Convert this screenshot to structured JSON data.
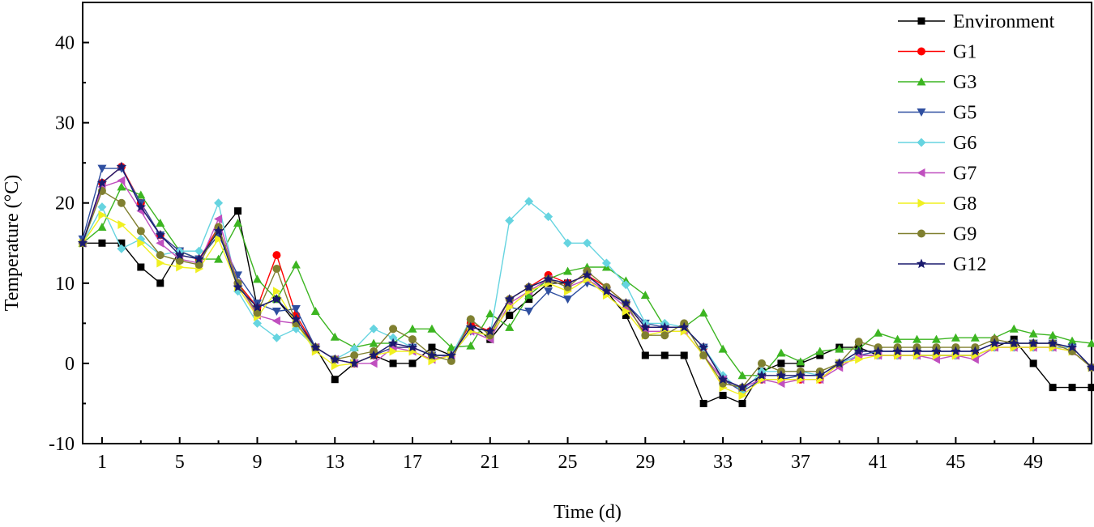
{
  "chart_data": {
    "type": "line",
    "title": "",
    "xlabel": "Time (d)",
    "ylabel": "Temperature (°C)",
    "xlim": [
      0,
      52
    ],
    "ylim": [
      -10,
      45
    ],
    "x_ticks": [
      1,
      5,
      9,
      13,
      17,
      21,
      25,
      29,
      33,
      37,
      41,
      45,
      49
    ],
    "y_ticks": [
      -10,
      0,
      10,
      20,
      30,
      40
    ],
    "legend_position": "top-right",
    "grid": false,
    "x": [
      0,
      1,
      2,
      3,
      4,
      5,
      6,
      7,
      8,
      9,
      10,
      11,
      12,
      13,
      14,
      15,
      16,
      17,
      18,
      19,
      20,
      21,
      22,
      23,
      24,
      25,
      26,
      27,
      28,
      29,
      30,
      31,
      32,
      33,
      34,
      35,
      36,
      37,
      38,
      39,
      40,
      41,
      42,
      43,
      44,
      45,
      46,
      47,
      48,
      49,
      50,
      51,
      52
    ],
    "series": [
      {
        "name": "Environment",
        "color": "#000000",
        "marker": "square",
        "values": [
          15,
          15,
          15,
          12,
          10,
          14,
          13,
          16,
          19,
          7,
          8,
          5,
          2,
          -2,
          0,
          1,
          0,
          0,
          2,
          1,
          5,
          3,
          6,
          8,
          10,
          10,
          11,
          9,
          6,
          1,
          1,
          1,
          -5,
          -4,
          -5,
          -1,
          0,
          0,
          1,
          2,
          2,
          1,
          1,
          1,
          1,
          1,
          1,
          2,
          3,
          0,
          -3,
          -3,
          -3
        ]
      },
      {
        "name": "G1",
        "color": "#ff0000",
        "marker": "circle",
        "values": [
          15,
          22.5,
          24.5,
          20,
          16,
          14,
          13,
          17,
          10,
          7,
          13.5,
          6,
          2,
          0.5,
          0,
          1,
          2,
          2,
          1,
          1,
          5,
          4,
          8,
          9.5,
          11,
          10,
          11,
          9.5,
          7.5,
          4.5,
          4.5,
          4.5,
          2,
          -2,
          -3.5,
          -2,
          -2,
          -2,
          -2,
          0,
          1,
          1,
          1,
          1,
          1,
          1,
          1,
          2,
          2,
          2,
          2,
          2,
          -0.5
        ]
      },
      {
        "name": "G3",
        "color": "#3cb521",
        "marker": "triangle-up",
        "values": [
          15,
          17,
          22,
          21,
          17.5,
          14,
          13,
          13,
          17.5,
          10.5,
          8,
          12.3,
          6.5,
          3.3,
          2,
          2.5,
          2.5,
          4.3,
          4.3,
          2,
          2.2,
          6.2,
          4.5,
          8.5,
          10.5,
          11.5,
          12,
          12,
          10.3,
          8.5,
          4.5,
          4.5,
          6.3,
          1.8,
          -1.5,
          -1.5,
          1.3,
          0.2,
          1.5,
          1.8,
          1.8,
          3.8,
          3,
          3,
          3,
          3.2,
          3.2,
          3.2,
          4.3,
          3.7,
          3.5,
          2.8,
          2.5
        ]
      },
      {
        "name": "G5",
        "color": "#2f4fa0",
        "marker": "triangle-down",
        "values": [
          15.5,
          24.3,
          24.3,
          20,
          16,
          14,
          13,
          16,
          11,
          7.5,
          6.5,
          6.8,
          2,
          0.5,
          0,
          1,
          2,
          2,
          1,
          1,
          4,
          3.5,
          7,
          6.5,
          9,
          8,
          10,
          9,
          7.5,
          5,
          4.5,
          4.5,
          2,
          -2,
          -3.5,
          -2,
          -2,
          -1.5,
          -1.5,
          0,
          1,
          1.5,
          1.5,
          1.5,
          1.5,
          1.5,
          1.5,
          2.5,
          2.5,
          2.5,
          2.5,
          2,
          -0.5
        ]
      },
      {
        "name": "G6",
        "color": "#66d4e0",
        "marker": "diamond",
        "values": [
          15,
          19.5,
          14.3,
          15.5,
          13.5,
          14,
          14,
          20,
          9,
          5,
          3.2,
          4.3,
          2,
          0.5,
          1.8,
          4.3,
          3.2,
          2,
          1,
          1,
          5.5,
          3.5,
          17.8,
          20.2,
          18.3,
          15,
          15,
          12.5,
          9.8,
          5,
          5,
          4.5,
          2,
          -1.5,
          -3.5,
          -1,
          -1,
          -1,
          -1.5,
          0,
          1,
          1,
          1,
          1,
          1,
          1,
          1,
          2,
          2,
          2,
          2,
          2,
          -0.5
        ]
      },
      {
        "name": "G7",
        "color": "#c04fbf",
        "marker": "triangle-left",
        "values": [
          15,
          22,
          22.8,
          19,
          15,
          13,
          12.5,
          18,
          10,
          6,
          5.3,
          5,
          2,
          0.5,
          0,
          0,
          2,
          1.5,
          0.5,
          1,
          4,
          3,
          7.5,
          9,
          10.5,
          9.5,
          10.5,
          9,
          7,
          4,
          4,
          4,
          1,
          -2,
          -3,
          -2,
          -2.5,
          -2,
          -2,
          -0.5,
          1,
          1,
          1,
          1,
          0.5,
          1,
          0.5,
          2,
          2,
          2,
          2,
          1.5,
          -0.5
        ]
      },
      {
        "name": "G8",
        "color": "#f0f020",
        "marker": "triangle-right",
        "values": [
          15,
          18.5,
          17.3,
          15,
          12.5,
          12,
          11.8,
          15.5,
          9.5,
          5.8,
          9,
          5,
          1.5,
          -0.3,
          0,
          1,
          1.5,
          1.5,
          0.3,
          1,
          4,
          3.5,
          7,
          9,
          10,
          9,
          10.5,
          8.5,
          6.5,
          3.5,
          4,
          4,
          1,
          -3,
          -4,
          -2,
          -2,
          -2,
          -2,
          0,
          0.5,
          1,
          1,
          1,
          1,
          1,
          1,
          2,
          2,
          2,
          2,
          1.5,
          -0.5
        ]
      },
      {
        "name": "G9",
        "color": "#808030",
        "marker": "circle",
        "values": [
          15,
          21.5,
          20,
          16.5,
          13.5,
          12.8,
          12.3,
          17,
          10,
          6.3,
          11.8,
          5,
          2,
          0.5,
          1,
          1.5,
          4.3,
          3,
          1,
          0.3,
          5.5,
          3.5,
          8,
          9.5,
          10.5,
          9.5,
          11.5,
          9.5,
          7.5,
          3.5,
          3.5,
          5,
          1,
          -2.5,
          -3,
          0,
          -1,
          -1,
          -1,
          0,
          2.7,
          2,
          2,
          2,
          2,
          2,
          2,
          3,
          2.5,
          2.5,
          2.5,
          1.5,
          -0.5
        ]
      },
      {
        "name": "G12",
        "color": "#1a1a6e",
        "marker": "star",
        "values": [
          15,
          22.5,
          24.5,
          19.5,
          16,
          13.5,
          13,
          16.5,
          9.5,
          7,
          8,
          5.5,
          2,
          0.5,
          0,
          1,
          2.5,
          2,
          1,
          1,
          4.5,
          4,
          8,
          9.5,
          10.5,
          10,
          11,
          9,
          7.5,
          4.5,
          4.5,
          4.5,
          2,
          -2,
          -3,
          -1.5,
          -1.5,
          -1.5,
          -1.5,
          0,
          1.5,
          1.5,
          1.5,
          1.5,
          1.5,
          1.5,
          1.5,
          2.5,
          2.5,
          2.5,
          2.5,
          2,
          -0.5
        ]
      }
    ]
  }
}
